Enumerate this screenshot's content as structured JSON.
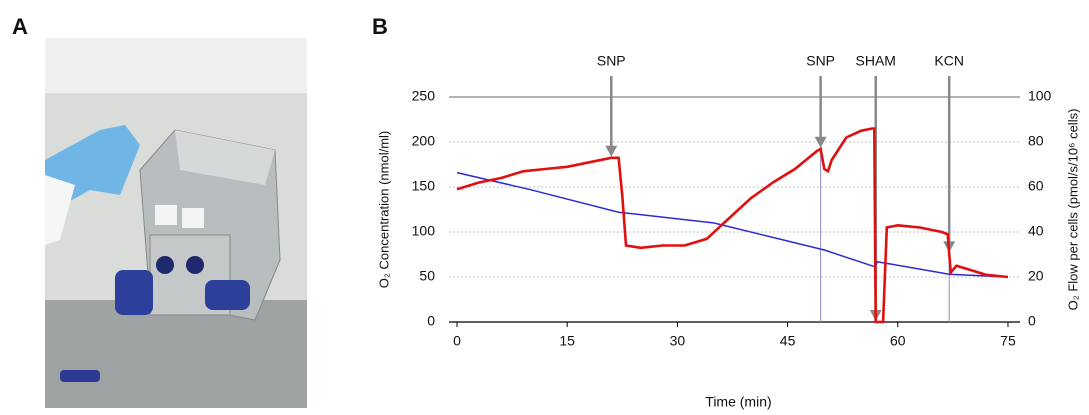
{
  "panel_labels": [
    "A",
    "B"
  ],
  "chart_data": {
    "type": "line",
    "xlabel": "Time (min)",
    "ylabel": "O₂ Concentration (nmol/ml)",
    "y2label": "O₂ Flow per cells (pmol/s/10⁶ cells)",
    "xlim": [
      0,
      78
    ],
    "xticks": [
      0,
      15,
      30,
      45,
      60,
      75
    ],
    "ylim": [
      0,
      250
    ],
    "yticks": [
      0,
      50,
      100,
      150,
      200,
      250
    ],
    "y2lim": [
      0,
      100
    ],
    "y2ticks": [
      0,
      20,
      40,
      60,
      80,
      100
    ],
    "grid": true,
    "series": [
      {
        "color": "#2b2bd6",
        "axis": "y",
        "x": [
          0,
          10,
          22,
          35,
          45,
          50,
          57,
          57.2,
          67,
          75
        ],
        "values": [
          166,
          147,
          122,
          110,
          90,
          80,
          61,
          67,
          53,
          50
        ]
      },
      {
        "color": "#e01010",
        "axis": "y2",
        "x": [
          0,
          3,
          6,
          9,
          12,
          15,
          18,
          21,
          22,
          22.5,
          23,
          25,
          28,
          31,
          34,
          37,
          40,
          43,
          46,
          49,
          49.5,
          50,
          50.5,
          51,
          53,
          55,
          56.5,
          56.8,
          57,
          57.3,
          57.6,
          58,
          58.5,
          60,
          63,
          66,
          66.8,
          67.2,
          68,
          70,
          72,
          75
        ],
        "values": [
          59,
          62,
          64,
          67,
          68,
          69,
          71,
          73,
          73,
          56,
          34,
          33,
          34,
          34,
          37,
          46,
          55,
          62,
          68,
          76,
          77,
          68,
          67,
          72,
          82,
          85,
          86,
          86,
          0,
          0,
          0,
          0,
          42,
          43,
          42,
          40,
          39,
          22,
          25,
          23,
          21,
          20
        ]
      }
    ],
    "annotations": [
      {
        "text": "SNP",
        "x": 21
      },
      {
        "text": "SNP",
        "x": 49.5
      },
      {
        "text": "SHAM",
        "x": 57
      },
      {
        "text": "KCN",
        "x": 67
      }
    ]
  }
}
